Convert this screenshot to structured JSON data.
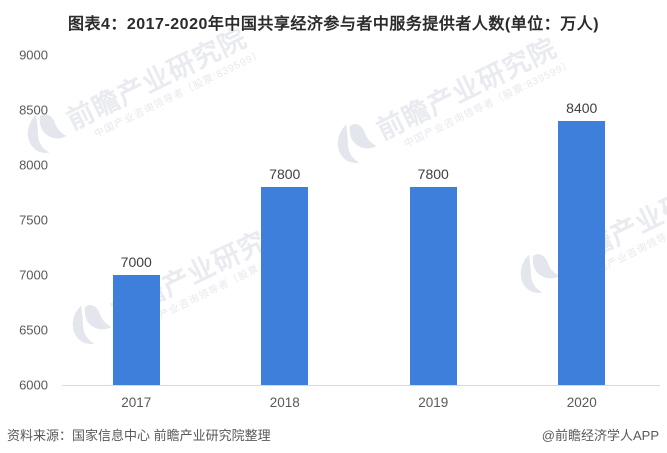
{
  "title": "图表4：2017-2020年中国共享经济参与者中服务提供者人数(单位：万人)",
  "chart_data": {
    "type": "bar",
    "categories": [
      "2017",
      "2018",
      "2019",
      "2020"
    ],
    "values": [
      7000,
      7800,
      7800,
      8400
    ],
    "title": "图表4：2017-2020年中国共享经济参与者中服务提供者人数(单位：万人)",
    "xlabel": "",
    "ylabel": "",
    "unit": "万人",
    "ylim": [
      6000,
      9000
    ],
    "yticks": [
      6000,
      6500,
      7000,
      7500,
      8000,
      8500,
      9000
    ],
    "grid": false,
    "legend": "none",
    "bar_color": "#3E7FDC"
  },
  "footer": {
    "source": "资料来源：国家信息中心 前瞻产业研究院整理",
    "credit": "@前瞻经济学人APP"
  },
  "watermark": {
    "brand": "前瞻产业研究院",
    "tagline": "中国产业咨询领导者（股票:839599）"
  },
  "colors": {
    "bar": "#3E7FDC",
    "title_text": "#2b2b2b",
    "axis_text": "#595959",
    "value_text": "#404040",
    "axis_line": "#d9d9d9",
    "watermark_text": "#e9ebf1",
    "background": "#ffffff"
  }
}
